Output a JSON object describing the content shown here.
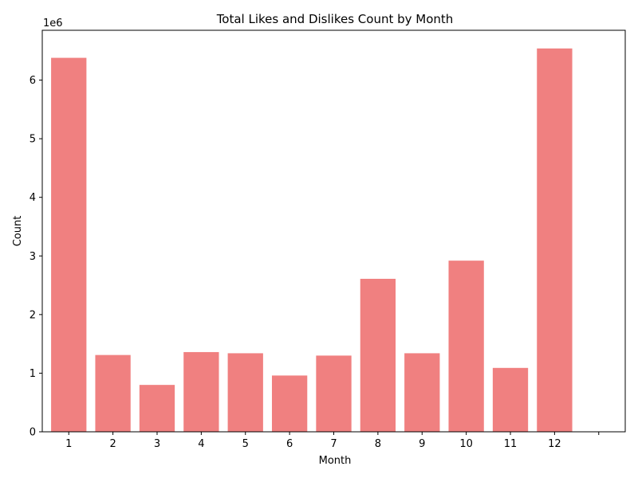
{
  "chart_data": {
    "type": "bar",
    "title": "Total Likes and Dislikes Count by Month",
    "xlabel": "Month",
    "ylabel": "Count",
    "y_scale_label": "1e6",
    "categories": [
      "1",
      "2",
      "3",
      "4",
      "5",
      "6",
      "7",
      "8",
      "9",
      "10",
      "11",
      "12"
    ],
    "values": [
      6380000,
      1310000,
      800000,
      1360000,
      1340000,
      960000,
      1300000,
      2610000,
      1340000,
      2920000,
      1090000,
      6540000
    ],
    "ylim": [
      0,
      6850000
    ],
    "y_ticks": [
      0,
      1,
      2,
      3,
      4,
      5,
      6
    ],
    "y_tick_labels": [
      "0",
      "1",
      "2",
      "3",
      "4",
      "5",
      "6"
    ],
    "bar_color": "#f08080",
    "grid": false,
    "legend": "none"
  }
}
